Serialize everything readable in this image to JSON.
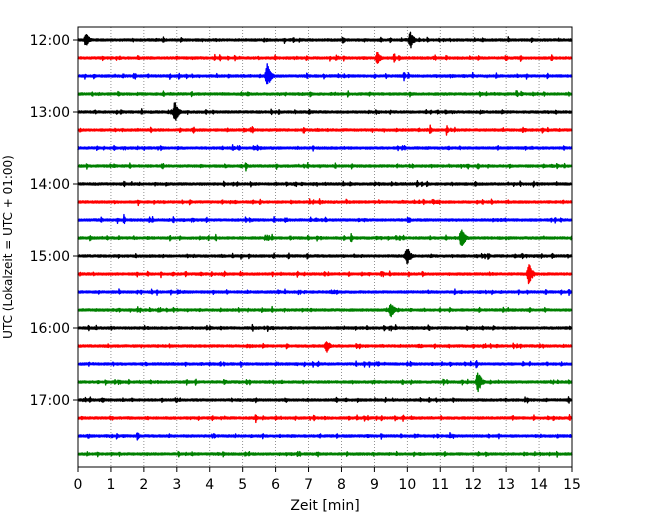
{
  "chart_data": {
    "type": "line",
    "xlabel": "Zeit  [min]",
    "ylabel": "UTC (Lokalzeit = UTC + 01:00)",
    "xlim": [
      0,
      15
    ],
    "x_ticks": [
      "0",
      "1",
      "2",
      "3",
      "4",
      "5",
      "6",
      "7",
      "8",
      "9",
      "10",
      "11",
      "12",
      "13",
      "14",
      "15"
    ],
    "y_ticks": [
      {
        "label": "12:00",
        "row": 0
      },
      {
        "label": "13:00",
        "row": 4
      },
      {
        "label": "14:00",
        "row": 8
      },
      {
        "label": "15:00",
        "row": 12
      },
      {
        "label": "16:00",
        "row": 16
      },
      {
        "label": "17:00",
        "row": 20
      }
    ],
    "vertical_grid": true,
    "colors": [
      "#000000",
      "#ff0000",
      "#0000ff",
      "#008000"
    ],
    "traces": [
      {
        "start": "12:00",
        "events": [
          {
            "t": 0.25,
            "a": 7
          },
          {
            "t": 10.1,
            "a": 9
          }
        ]
      },
      {
        "start": "12:15",
        "events": [
          {
            "t": 9.1,
            "a": 7
          },
          {
            "t": 9.6,
            "a": 6
          }
        ]
      },
      {
        "start": "12:30",
        "events": [
          {
            "t": 5.75,
            "a": 13
          },
          {
            "t": 9.9,
            "a": 6
          }
        ]
      },
      {
        "start": "12:45",
        "events": [
          {
            "t": 8.2,
            "a": 4
          }
        ]
      },
      {
        "start": "13:00",
        "events": [
          {
            "t": 2.95,
            "a": 11
          }
        ]
      },
      {
        "start": "13:15",
        "events": [
          {
            "t": 10.7,
            "a": 6
          },
          {
            "t": 11.2,
            "a": 6
          }
        ]
      },
      {
        "start": "13:30",
        "events": [
          {
            "t": 4.9,
            "a": 3
          }
        ]
      },
      {
        "start": "13:45",
        "events": [
          {
            "t": 5.1,
            "a": 5
          }
        ]
      },
      {
        "start": "14:00",
        "events": [
          {
            "t": 1.4,
            "a": 4
          },
          {
            "t": 10.3,
            "a": 4
          }
        ]
      },
      {
        "start": "14:15",
        "events": []
      },
      {
        "start": "14:30",
        "events": [
          {
            "t": 1.4,
            "a": 6
          }
        ]
      },
      {
        "start": "14:45",
        "events": [
          {
            "t": 8.3,
            "a": 6
          },
          {
            "t": 11.65,
            "a": 11
          }
        ]
      },
      {
        "start": "15:00",
        "events": [
          {
            "t": 10.0,
            "a": 10
          }
        ]
      },
      {
        "start": "15:15",
        "events": [
          {
            "t": 13.7,
            "a": 11
          }
        ]
      },
      {
        "start": "15:30",
        "events": [
          {
            "t": 2.4,
            "a": 4
          }
        ]
      },
      {
        "start": "15:45",
        "events": [
          {
            "t": 9.5,
            "a": 9
          }
        ]
      },
      {
        "start": "16:00",
        "events": [
          {
            "t": 5.3,
            "a": 4
          },
          {
            "t": 9.3,
            "a": 4
          }
        ]
      },
      {
        "start": "16:15",
        "events": [
          {
            "t": 7.55,
            "a": 7
          }
        ]
      },
      {
        "start": "16:30",
        "events": [
          {
            "t": 12.1,
            "a": 6
          }
        ]
      },
      {
        "start": "16:45",
        "events": [
          {
            "t": 12.15,
            "a": 12
          },
          {
            "t": 11.1,
            "a": 4
          }
        ]
      },
      {
        "start": "17:00",
        "events": [
          {
            "t": 14.9,
            "a": 4
          }
        ]
      },
      {
        "start": "17:15",
        "events": [
          {
            "t": 5.4,
            "a": 5
          }
        ]
      },
      {
        "start": "17:30",
        "events": [
          {
            "t": 1.8,
            "a": 5
          }
        ]
      },
      {
        "start": "17:45",
        "events": []
      }
    ]
  }
}
